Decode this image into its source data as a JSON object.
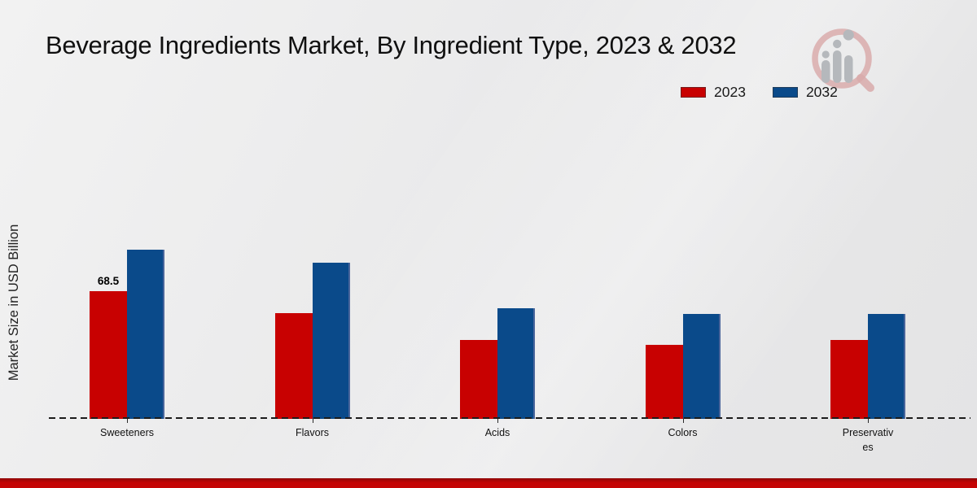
{
  "chart_data": {
    "type": "bar",
    "title": "Beverage Ingredients Market, By Ingredient Type, 2023 & 2032",
    "xlabel": "",
    "ylabel": "Market Size in USD Billion",
    "categories": [
      "Sweeteners",
      "Flavors",
      "Acids",
      "Colors",
      "Preservatives"
    ],
    "series": [
      {
        "name": "2023",
        "color": "#c80101",
        "values": [
          68.5,
          56.5,
          42.2,
          39.6,
          42.0
        ]
      },
      {
        "name": "2032",
        "color": "#0a4a8a",
        "values": [
          90.6,
          83.4,
          59.3,
          55.9,
          55.9
        ]
      }
    ],
    "annotations": [
      {
        "series_index": 0,
        "category_index": 0,
        "text": "68.5"
      }
    ],
    "ylim": [
      0,
      95
    ],
    "grid": false,
    "legend_position": "top-right",
    "baseline_style": "dashed",
    "axis_ticks_visible": true
  },
  "branding": {
    "watermark_icon": "magnifier-trend-chart-logo",
    "footer_band_color": "#c40505"
  }
}
